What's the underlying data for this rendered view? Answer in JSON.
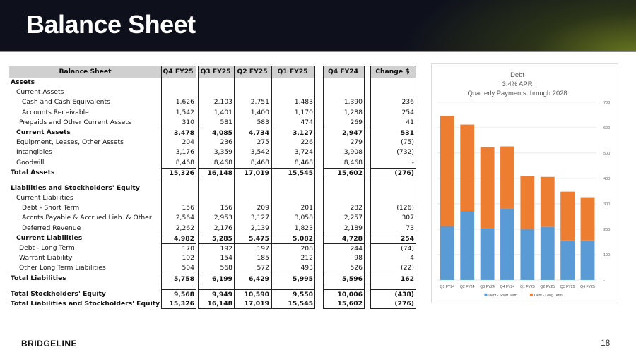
{
  "header": {
    "title": "Balance Sheet"
  },
  "footer": {
    "logo": "BRIDGELINE",
    "page": "18"
  },
  "table": {
    "columns": [
      "Balance Sheet",
      "Q4 FY25",
      "Q3 FY25",
      "Q2 FY25",
      "Q1 FY25",
      "Q4 FY24",
      "Change $"
    ],
    "rows": [
      {
        "label": "Assets",
        "indent": 0,
        "bold": true,
        "values": [
          "",
          "",
          "",
          "",
          "",
          ""
        ]
      },
      {
        "label": "Current Assets",
        "indent": 1,
        "values": [
          "",
          "",
          "",
          "",
          "",
          ""
        ]
      },
      {
        "label": "Cash and Cash Equivalents",
        "indent": 2,
        "values": [
          "1,626",
          "2,103",
          "2,751",
          "1,483",
          "1,390",
          "236"
        ]
      },
      {
        "label": "Accounts Receivable",
        "indent": 2,
        "values": [
          "1,542",
          "1,401",
          "1,400",
          "1,170",
          "1,288",
          "254"
        ]
      },
      {
        "label": "Prepaids and Other Current Assets",
        "indent": 1.5,
        "values": [
          "310",
          "581",
          "583",
          "474",
          "269",
          "41"
        ]
      },
      {
        "label": "Current Assets",
        "indent": 1,
        "bold": true,
        "line": true,
        "values": [
          "3,478",
          "4,085",
          "4,734",
          "3,127",
          "2,947",
          "531"
        ]
      },
      {
        "label": "Equipment, Leases, Other Assets",
        "indent": 1,
        "values": [
          "204",
          "236",
          "275",
          "226",
          "279",
          "(75)"
        ]
      },
      {
        "label": "Intangibles",
        "indent": 1,
        "values": [
          "3,176",
          "3,359",
          "3,542",
          "3,724",
          "3,908",
          "(732)"
        ]
      },
      {
        "label": "Goodwill",
        "indent": 1,
        "values": [
          "8,468",
          "8,468",
          "8,468",
          "8,468",
          "8,468",
          "-"
        ]
      },
      {
        "label": "Total Assets",
        "indent": 0,
        "bold": true,
        "line": true,
        "values": [
          "15,326",
          "16,148",
          "17,019",
          "15,545",
          "15,602",
          "(276)"
        ]
      },
      {
        "label": "",
        "indent": 0,
        "line": true,
        "spacer": true,
        "values": [
          "",
          "",
          "",
          "",
          "",
          ""
        ]
      },
      {
        "label": "Liabilities and Stockholders' Equity",
        "indent": 0,
        "bold": true,
        "values": [
          "",
          "",
          "",
          "",
          "",
          ""
        ]
      },
      {
        "label": "Current Liabilities",
        "indent": 1,
        "values": [
          "",
          "",
          "",
          "",
          "",
          ""
        ]
      },
      {
        "label": "Debt - Short Term",
        "indent": 2,
        "values": [
          "156",
          "156",
          "209",
          "201",
          "282",
          "(126)"
        ]
      },
      {
        "label": "Accnts Payable & Accrued Liab. & Other",
        "indent": 2,
        "values": [
          "2,564",
          "2,953",
          "3,127",
          "3,058",
          "2,257",
          "307"
        ]
      },
      {
        "label": "Deferred Revenue",
        "indent": 2,
        "values": [
          "2,262",
          "2,176",
          "2,139",
          "1,823",
          "2,189",
          "73"
        ]
      },
      {
        "label": "Current Liabilities",
        "indent": 1,
        "bold": true,
        "line": true,
        "values": [
          "4,982",
          "5,285",
          "5,475",
          "5,082",
          "4,728",
          "254"
        ]
      },
      {
        "label": "Debt - Long Term",
        "indent": 1.5,
        "line": true,
        "values": [
          "170",
          "192",
          "197",
          "208",
          "244",
          "(74)"
        ]
      },
      {
        "label": "Warrant Liability",
        "indent": 1.5,
        "values": [
          "102",
          "154",
          "185",
          "212",
          "98",
          "4"
        ]
      },
      {
        "label": "Other Long Term Liabilities",
        "indent": 1.5,
        "values": [
          "504",
          "568",
          "572",
          "493",
          "526",
          "(22)"
        ]
      },
      {
        "label": "Total Liabilities",
        "indent": 0,
        "bold": true,
        "line": true,
        "values": [
          "5,758",
          "6,199",
          "6,429",
          "5,995",
          "5,596",
          "162"
        ]
      },
      {
        "label": "",
        "indent": 0,
        "line": true,
        "spacer": true,
        "values": [
          "",
          "",
          "",
          "",
          "",
          ""
        ]
      },
      {
        "label": "Total Stockholders' Equity",
        "indent": 0,
        "bold": true,
        "line": true,
        "values": [
          "9,568",
          "9,949",
          "10,590",
          "9,550",
          "10,006",
          "(438)"
        ]
      },
      {
        "label": "Total Liabilities and Stockholders' Equity",
        "indent": 0,
        "bold": true,
        "values": [
          "15,326",
          "16,148",
          "17,019",
          "15,545",
          "15,602",
          "(276)"
        ]
      }
    ]
  },
  "chart_data": {
    "type": "bar",
    "stacked": true,
    "title": [
      "Debt",
      "3.4% APR",
      "Quarterly Payments through 2028"
    ],
    "categories": [
      "Q1 FY24",
      "Q2 FY24",
      "Q3 FY24",
      "Q4 FY24",
      "Q1 FY25",
      "Q2 FY25",
      "Q3 FY25",
      "Q4 FY25"
    ],
    "series": [
      {
        "name": "Debt - Short Term",
        "color": "#5b9bd5",
        "values": [
          212,
          272,
          205,
          282,
          201,
          209,
          156,
          156
        ]
      },
      {
        "name": "Debt - Long Term",
        "color": "#ed7d31",
        "values": [
          434,
          340,
          318,
          244,
          208,
          197,
          192,
          170
        ]
      }
    ],
    "yticks": [
      "-",
      "100",
      "200",
      "300",
      "400",
      "500",
      "600",
      "700"
    ],
    "ylim": [
      0,
      700
    ],
    "yaxis_position": "right",
    "grid": true,
    "legend": "bottom"
  }
}
